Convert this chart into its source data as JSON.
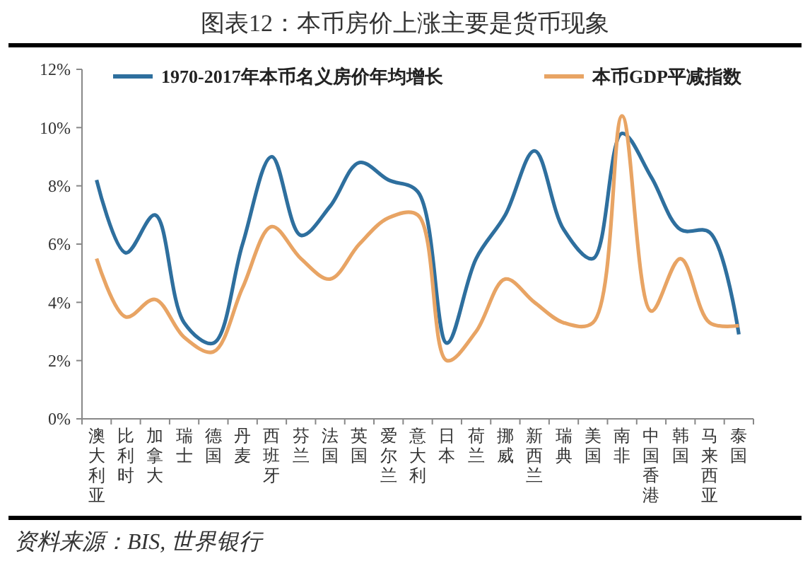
{
  "chart_data": {
    "type": "line",
    "title": "图表12：本币房价上涨主要是货币现象",
    "categories": [
      "澳大利亚",
      "比利时",
      "加拿大",
      "瑞士",
      "德国",
      "丹麦",
      "西班牙",
      "芬兰",
      "法国",
      "英国",
      "爱尔兰",
      "意大利",
      "日本",
      "荷兰",
      "挪威",
      "新西兰",
      "瑞典",
      "美国",
      "南非",
      "中国香港",
      "韩国",
      "马来西亚",
      "泰国"
    ],
    "series": [
      {
        "name": "1970-2017年本币名义房价年均增长",
        "color": "#2e6f9e",
        "values": [
          8.2,
          5.7,
          7.0,
          3.3,
          2.6,
          6.0,
          9.0,
          6.3,
          7.3,
          8.8,
          8.2,
          7.8,
          2.6,
          5.5,
          7.0,
          9.2,
          6.5,
          5.5,
          9.8,
          8.3,
          6.5,
          6.4,
          2.9
        ]
      },
      {
        "name": "本币GDP平减指数",
        "color": "#e8a464",
        "values": [
          5.5,
          3.5,
          4.1,
          2.8,
          2.3,
          4.5,
          6.6,
          5.5,
          4.8,
          6.0,
          6.9,
          7.0,
          2.0,
          3.0,
          4.8,
          4.0,
          3.3,
          3.3,
          10.4,
          3.7,
          5.5,
          3.3,
          3.2
        ]
      }
    ],
    "ylim": [
      0,
      12
    ],
    "yticks": [
      {
        "value": 0,
        "label": "0%"
      },
      {
        "value": 2,
        "label": "2%"
      },
      {
        "value": 4,
        "label": "4%"
      },
      {
        "value": 6,
        "label": "6%"
      },
      {
        "value": 8,
        "label": "8%"
      },
      {
        "value": 10,
        "label": "10%"
      },
      {
        "value": 12,
        "label": "12%"
      }
    ],
    "grid": false,
    "legend": "top",
    "marker": "none",
    "line_style": "solid",
    "annotations": [
      "资料来源：BIS, 世界银行"
    ]
  }
}
